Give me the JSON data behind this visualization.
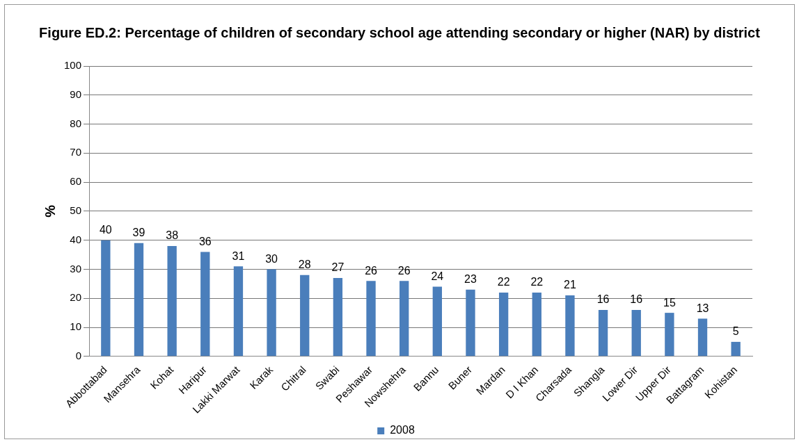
{
  "chart_data": {
    "type": "bar",
    "title": "Figure ED.2: Percentage of children of secondary school age attending secondary or higher (NAR) by district",
    "ylabel": "%",
    "categories": [
      "Abbottabad",
      "Mansehra",
      "Kohat",
      "Haripur",
      "Lakki Marwat",
      "Karak",
      "Chitral",
      "Swabi",
      "Peshawar",
      "Nowshehra",
      "Bannu",
      "Buner",
      "Mardan",
      "D I Khan",
      "Charsada",
      "Shangla",
      "Lower Dir",
      "Upper Dir",
      "Battagram",
      "Kohistan"
    ],
    "series": [
      {
        "name": "2008",
        "color": "#4a7ebb",
        "values": [
          40,
          39,
          38,
          36,
          31,
          30,
          28,
          27,
          26,
          26,
          24,
          23,
          22,
          22,
          21,
          16,
          16,
          15,
          13,
          5
        ]
      }
    ],
    "ylim": [
      0,
      100
    ],
    "yticks": [
      0,
      10,
      20,
      30,
      40,
      50,
      60,
      70,
      80,
      90,
      100
    ],
    "grid": "y",
    "legend": "bottom",
    "data_labels": true
  }
}
